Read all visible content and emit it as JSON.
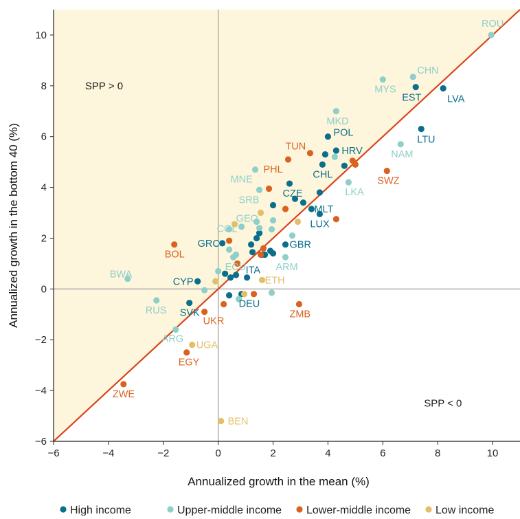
{
  "colors": {
    "high": "#0b6e8a",
    "upper": "#8fcfc9",
    "lower": "#d9621f",
    "low": "#e2c06a",
    "shade": "#fdf6dc",
    "line": "#d9441c",
    "zero": "#9a9a9a",
    "axis": "#222222"
  },
  "chart_data": {
    "type": "scatter",
    "xlabel": "Annualized growth in the mean (%)",
    "ylabel": "Annualized growth in the bottom 40 (%)",
    "xlim": [
      -6,
      11
    ],
    "ylim": [
      -6,
      11
    ],
    "xticks": [
      -6,
      -4,
      -2,
      0,
      2,
      4,
      6,
      8,
      10
    ],
    "yticks": [
      -6,
      -4,
      -2,
      0,
      2,
      4,
      6,
      8,
      10
    ],
    "xtick_labels": [
      "−6",
      "−4",
      "−2",
      "0",
      "2",
      "4",
      "6",
      "8",
      "10"
    ],
    "ytick_labels": [
      "−6",
      "−4",
      "−2",
      "0",
      "2",
      "4",
      "6",
      "8",
      "10"
    ],
    "grid": false,
    "reference_line": "y = x",
    "shaded_region": "above y = x",
    "annotations": [
      "SPP > 0",
      "SPP < 0"
    ],
    "legend_placement": "bottom",
    "series": [
      {
        "name": "High income",
        "color_key": "high",
        "points": [
          {
            "x": 8.2,
            "y": 7.9,
            "label": "LVA"
          },
          {
            "x": 7.2,
            "y": 7.95,
            "label": "EST"
          },
          {
            "x": 7.4,
            "y": 6.3,
            "label": "LTU"
          },
          {
            "x": 4.0,
            "y": 6.0,
            "label": "POL"
          },
          {
            "x": 4.3,
            "y": 5.45,
            "label": "HRV"
          },
          {
            "x": 3.9,
            "y": 5.3
          },
          {
            "x": 3.8,
            "y": 4.9,
            "label": "CHL"
          },
          {
            "x": 4.6,
            "y": 4.85
          },
          {
            "x": 2.6,
            "y": 4.15,
            "label": "CZE"
          },
          {
            "x": 3.7,
            "y": 3.8
          },
          {
            "x": 2.8,
            "y": 3.55
          },
          {
            "x": 3.1,
            "y": 3.4
          },
          {
            "x": 3.4,
            "y": 3.15,
            "label": "MLT"
          },
          {
            "x": 3.7,
            "y": 2.95,
            "label": "LUX"
          },
          {
            "x": 2.0,
            "y": 3.3
          },
          {
            "x": 2.45,
            "y": 1.75,
            "label": "GBR"
          },
          {
            "x": 1.5,
            "y": 2.2
          },
          {
            "x": 1.4,
            "y": 2.0
          },
          {
            "x": 0.15,
            "y": 1.8,
            "label": "GRC"
          },
          {
            "x": 1.2,
            "y": 1.75
          },
          {
            "x": 1.9,
            "y": 1.5
          },
          {
            "x": 2.0,
            "y": 1.4
          },
          {
            "x": 1.25,
            "y": 1.45
          },
          {
            "x": 1.6,
            "y": 1.35
          },
          {
            "x": 1.7,
            "y": 1.35
          },
          {
            "x": 0.25,
            "y": 0.6
          },
          {
            "x": 0.65,
            "y": 0.55
          },
          {
            "x": 0.45,
            "y": 0.45
          },
          {
            "x": 1.05,
            "y": 0.45,
            "label": "ITA"
          },
          {
            "x": -0.75,
            "y": 0.3,
            "label": "CYP"
          },
          {
            "x": -1.05,
            "y": -0.55,
            "label": "SVK"
          },
          {
            "x": 0.4,
            "y": -0.25
          },
          {
            "x": 0.85,
            "y": -0.2,
            "label": "DEU"
          }
        ]
      },
      {
        "name": "Upper-middle income",
        "color_key": "upper",
        "points": [
          {
            "x": 9.95,
            "y": 10.0,
            "label": "ROU"
          },
          {
            "x": 7.1,
            "y": 8.35,
            "label": "CHN"
          },
          {
            "x": 6.0,
            "y": 8.25,
            "label": "MYS"
          },
          {
            "x": 4.3,
            "y": 7.0,
            "label": "MKD"
          },
          {
            "x": 6.65,
            "y": 5.7,
            "label": "NAM"
          },
          {
            "x": 4.25,
            "y": 5.2
          },
          {
            "x": 4.75,
            "y": 4.2,
            "label": "LKA"
          },
          {
            "x": 1.35,
            "y": 4.7,
            "label": "MNE"
          },
          {
            "x": 1.5,
            "y": 3.9,
            "label": "SRB"
          },
          {
            "x": 2.0,
            "y": 2.7
          },
          {
            "x": 1.4,
            "y": 2.65,
            "label": "GEO"
          },
          {
            "x": 0.85,
            "y": 2.45
          },
          {
            "x": 1.5,
            "y": 2.4
          },
          {
            "x": 1.95,
            "y": 2.35
          },
          {
            "x": 0.4,
            "y": 2.35,
            "label": "COL"
          },
          {
            "x": 2.7,
            "y": 2.1
          },
          {
            "x": 0.4,
            "y": 1.55
          },
          {
            "x": 0.65,
            "y": 1.35
          },
          {
            "x": 0.55,
            "y": 1.25,
            "label": "ECU"
          },
          {
            "x": 2.45,
            "y": 1.25,
            "label": "ARM"
          },
          {
            "x": 0.0,
            "y": 0.7
          },
          {
            "x": -3.3,
            "y": 0.4,
            "label": "BWA"
          },
          {
            "x": -0.5,
            "y": -0.05
          },
          {
            "x": 1.95,
            "y": -0.15
          },
          {
            "x": 0.75,
            "y": -0.4
          },
          {
            "x": -2.25,
            "y": -0.45,
            "label": "RUS"
          },
          {
            "x": -1.55,
            "y": -1.6,
            "label": "ARG"
          }
        ]
      },
      {
        "name": "Lower-middle income",
        "color_key": "lower",
        "points": [
          {
            "x": 3.35,
            "y": 5.35,
            "label": "TUN"
          },
          {
            "x": 2.55,
            "y": 5.1,
            "label": "PHL"
          },
          {
            "x": 4.9,
            "y": 5.05
          },
          {
            "x": 5.0,
            "y": 4.9
          },
          {
            "x": 6.15,
            "y": 4.65,
            "label": "SWZ"
          },
          {
            "x": 1.85,
            "y": 3.95
          },
          {
            "x": 2.45,
            "y": 3.15
          },
          {
            "x": 4.3,
            "y": 2.75
          },
          {
            "x": 0.4,
            "y": 1.9
          },
          {
            "x": -1.6,
            "y": 1.75,
            "label": "BOL"
          },
          {
            "x": 1.65,
            "y": 1.6
          },
          {
            "x": 1.55,
            "y": 1.35
          },
          {
            "x": 0.7,
            "y": 1.0
          },
          {
            "x": 0.2,
            "y": -0.6
          },
          {
            "x": 1.3,
            "y": -0.2
          },
          {
            "x": -0.5,
            "y": -0.9,
            "label": "UKR"
          },
          {
            "x": 2.95,
            "y": -0.6,
            "label": "ZMB"
          },
          {
            "x": -1.15,
            "y": -2.5,
            "label": "EGY"
          },
          {
            "x": -3.45,
            "y": -3.75,
            "label": "ZWE"
          }
        ]
      },
      {
        "name": "Low income",
        "color_key": "low",
        "points": [
          {
            "x": 1.55,
            "y": 3.0
          },
          {
            "x": 2.9,
            "y": 2.65
          },
          {
            "x": 0.6,
            "y": 2.55
          },
          {
            "x": -0.1,
            "y": 0.3
          },
          {
            "x": 1.6,
            "y": 0.35,
            "label": "ETH"
          },
          {
            "x": 0.95,
            "y": -0.2
          },
          {
            "x": -0.95,
            "y": -2.2,
            "label": "UGA"
          },
          {
            "x": 0.1,
            "y": -5.2,
            "label": "BEN"
          }
        ]
      }
    ]
  },
  "legend": [
    {
      "label": "High income",
      "color_key": "high"
    },
    {
      "label": "Upper-middle income",
      "color_key": "upper"
    },
    {
      "label": "Lower-middle income",
      "color_key": "lower"
    },
    {
      "label": "Low income",
      "color_key": "low"
    }
  ]
}
